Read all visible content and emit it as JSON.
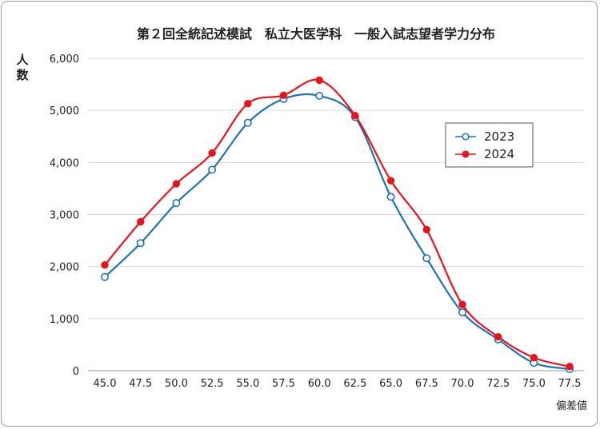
{
  "chart_data": {
    "type": "line",
    "title": "第２回全統記述模試　私立大医学科　一般入試志望者学力分布",
    "xlabel": "偏差値",
    "ylabel": "人数",
    "categories": [
      "45.0",
      "47.5",
      "50.0",
      "52.5",
      "55.0",
      "57.5",
      "60.0",
      "62.5",
      "65.0",
      "67.5",
      "70.0",
      "72.5",
      "75.0",
      "77.5"
    ],
    "ylim": [
      0,
      6000
    ],
    "yticks": [
      "0",
      "1,000",
      "2,000",
      "3,000",
      "4,000",
      "5,000",
      "6,000"
    ],
    "grid": true,
    "legend": "right",
    "series": [
      {
        "name": "2023",
        "color": "#1f72b8",
        "marker": "open-circle",
        "values": [
          1800,
          2450,
          3220,
          3860,
          4760,
          5220,
          5280,
          4870,
          3340,
          2160,
          1120,
          600,
          150,
          30
        ]
      },
      {
        "name": "2024",
        "color": "#e8141b",
        "marker": "filled-circle",
        "values": [
          2030,
          2860,
          3590,
          4180,
          5130,
          5290,
          5580,
          4900,
          3650,
          2710,
          1270,
          650,
          250,
          80
        ]
      }
    ]
  }
}
